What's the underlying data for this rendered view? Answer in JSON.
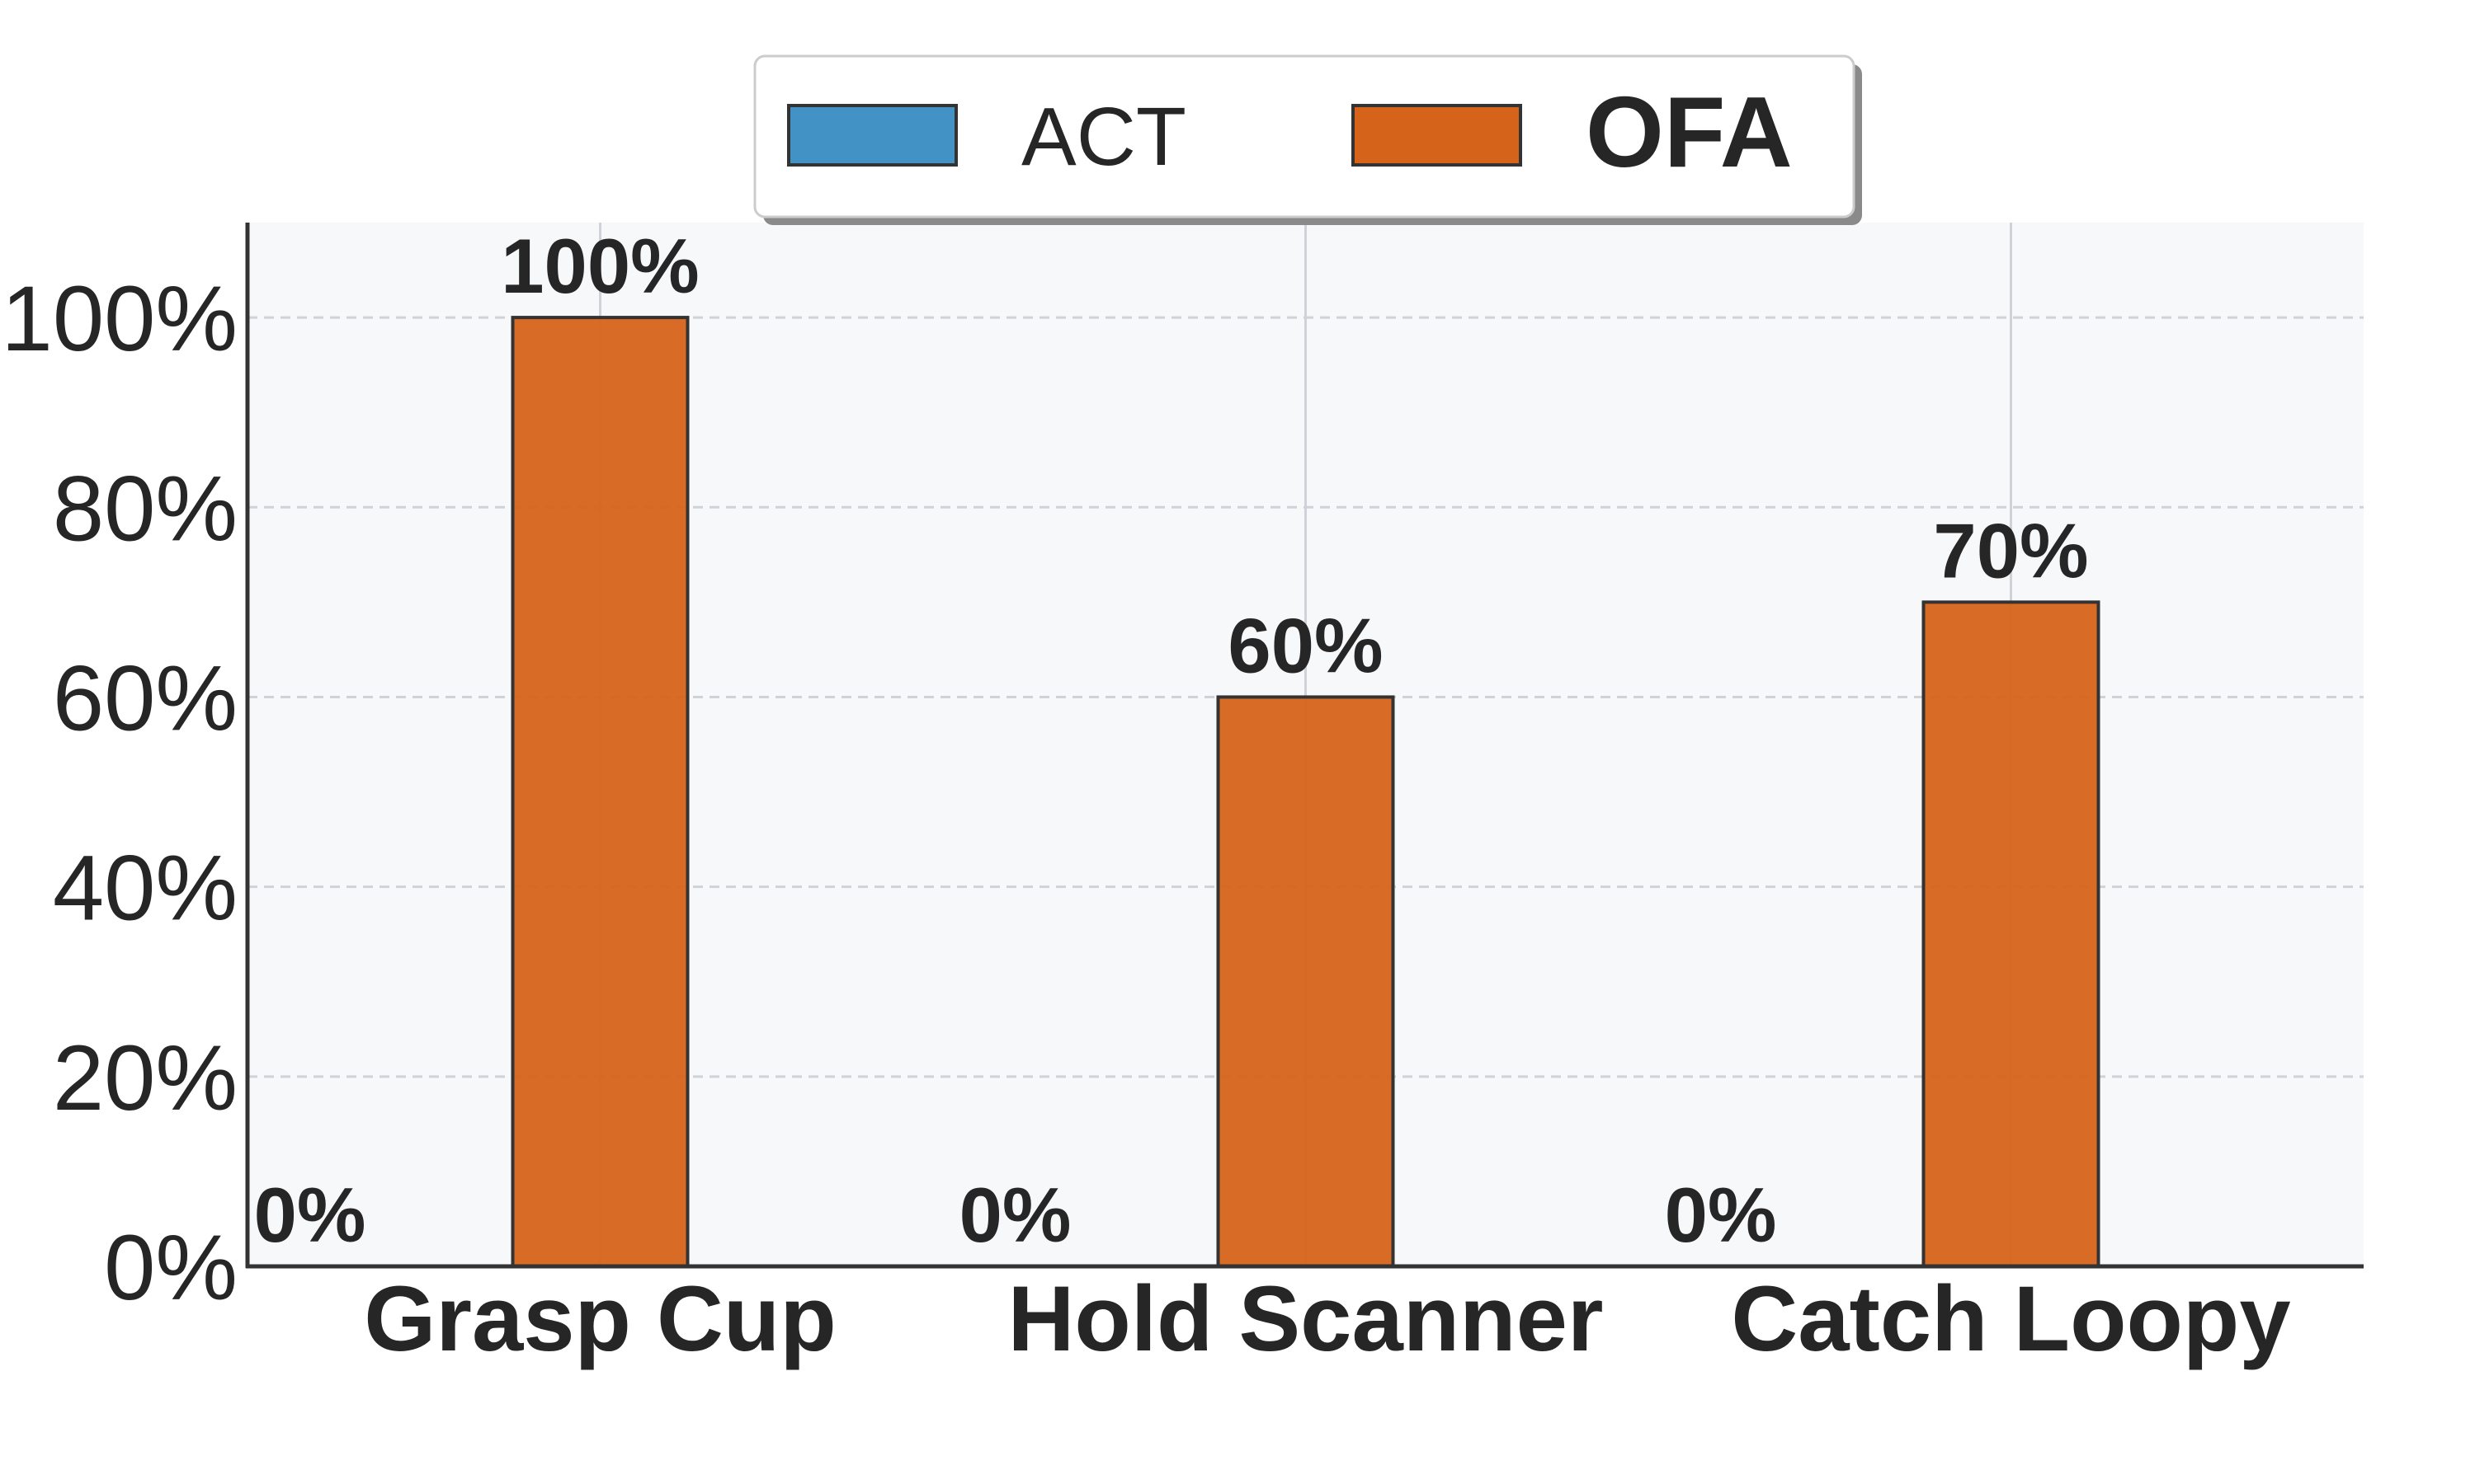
{
  "chart_data": {
    "type": "bar",
    "categories": [
      "Grasp Cup",
      "Hold Scanner",
      "Catch Loopy"
    ],
    "series": [
      {
        "name": "ACT",
        "values": [
          0,
          0,
          0
        ],
        "color": "#4292c6",
        "labels": [
          "0%",
          "0%",
          "0%"
        ]
      },
      {
        "name": "OFA",
        "values": [
          100,
          60,
          70
        ],
        "color": "#d6631a",
        "labels": [
          "100%",
          "60%",
          "70%"
        ]
      }
    ],
    "ylim": [
      0,
      110
    ],
    "yticks": [
      0,
      20,
      40,
      60,
      80,
      100
    ],
    "ytick_labels": [
      "0%",
      "20%",
      "40%",
      "60%",
      "80%",
      "100%"
    ],
    "grid": true,
    "legend": {
      "placement": "top-center",
      "bold_series": "OFA"
    },
    "background_color": "#f7f8fa",
    "grid_color": "#cfd3d8"
  }
}
